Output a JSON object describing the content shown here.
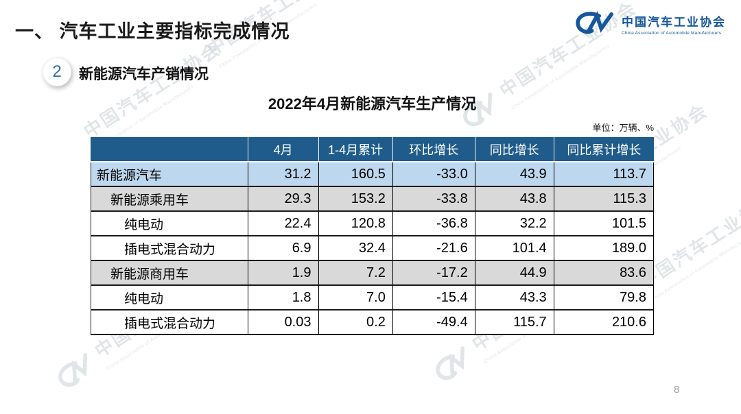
{
  "slide": {
    "main_title": "一、 汽车工业主要指标完成情况",
    "page_number": "8"
  },
  "logo": {
    "mark": "CM-swoosh",
    "name_cn": "中国汽车工业协会",
    "name_en": "China Association of Automobile Manufacturers",
    "color": "#15569c"
  },
  "section": {
    "number": "2",
    "title": "新能源汽车产销情况"
  },
  "table": {
    "title": "2022年4月新能源汽车生产情况",
    "unit_label": "单位：万辆、%",
    "header_bg": "#1f5c8b",
    "columns": [
      "",
      "4月",
      "1-4月累计",
      "环比增长",
      "同比增长",
      "同比累计增长"
    ],
    "rows": [
      {
        "label": "新能源汽车",
        "indent": 0,
        "bg": "#bdd7ee",
        "values": [
          "31.2",
          "160.5",
          "-33.0",
          "43.9",
          "113.7"
        ]
      },
      {
        "label": "新能源乘用车",
        "indent": 1,
        "bg": "#d9d9d9",
        "values": [
          "29.3",
          "153.2",
          "-33.8",
          "43.8",
          "115.3"
        ]
      },
      {
        "label": "纯电动",
        "indent": 2,
        "bg": "#ffffff",
        "values": [
          "22.4",
          "120.8",
          "-36.8",
          "32.2",
          "101.5"
        ]
      },
      {
        "label": "插电式混合动力",
        "indent": 2,
        "bg": "#ffffff",
        "values": [
          "6.9",
          "32.4",
          "-21.6",
          "101.4",
          "189.0"
        ]
      },
      {
        "label": "新能源商用车",
        "indent": 1,
        "bg": "#d9d9d9",
        "values": [
          "1.9",
          "7.2",
          "-17.2",
          "44.9",
          "83.6"
        ]
      },
      {
        "label": "纯电动",
        "indent": 2,
        "bg": "#ffffff",
        "values": [
          "1.8",
          "7.0",
          "-15.4",
          "43.3",
          "79.8"
        ]
      },
      {
        "label": "插电式混合动力",
        "indent": 2,
        "bg": "#ffffff",
        "values": [
          "0.03",
          "0.2",
          "-49.4",
          "115.7",
          "210.6"
        ]
      }
    ]
  },
  "watermark": {
    "text_cn": "中国汽车工业协会",
    "text_en": "China Association of Automobile Manufacturers",
    "color": "#c3ccd3"
  }
}
